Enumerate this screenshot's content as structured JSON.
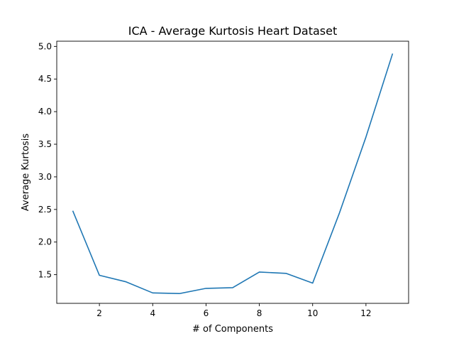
{
  "chart_data": {
    "type": "line",
    "title": "ICA - Average Kurtosis Heart Dataset",
    "xlabel": "# of Components",
    "ylabel": "Average Kurtosis",
    "xlim": [
      0.4,
      13.6
    ],
    "ylim": [
      1.06,
      5.08
    ],
    "xticks": [
      2,
      4,
      6,
      8,
      10,
      12
    ],
    "yticks": [
      1.5,
      2.0,
      2.5,
      3.0,
      3.5,
      4.0,
      4.5,
      5.0
    ],
    "xtick_labels": [
      "2",
      "4",
      "6",
      "8",
      "10",
      "12"
    ],
    "ytick_labels": [
      "1.5",
      "2.0",
      "2.5",
      "3.0",
      "3.5",
      "4.0",
      "4.5",
      "5.0"
    ],
    "grid": false,
    "series": [
      {
        "color": "#1f77b4",
        "x": [
          1,
          2,
          3,
          4,
          5,
          6,
          7,
          8,
          9,
          10,
          11,
          12,
          13
        ],
        "y": [
          2.48,
          1.49,
          1.39,
          1.22,
          1.21,
          1.29,
          1.3,
          1.54,
          1.52,
          1.37,
          2.44,
          3.61,
          4.89
        ]
      }
    ]
  }
}
